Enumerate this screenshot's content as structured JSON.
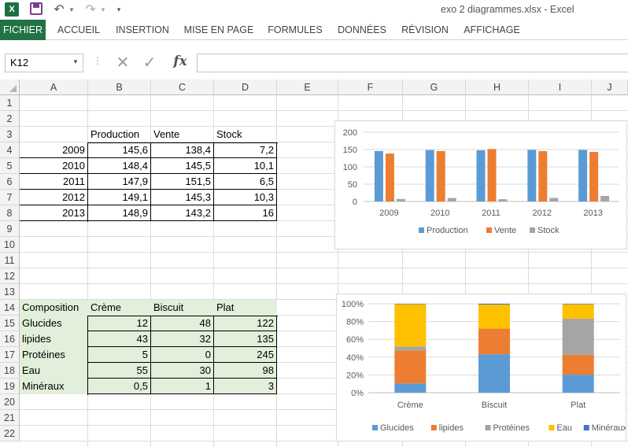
{
  "app": {
    "app_icon": "excel-icon",
    "window_title": "exo 2 diagrammes.xlsx - Excel"
  },
  "ribbon": {
    "tabs": [
      "FICHIER",
      "ACCUEIL",
      "INSERTION",
      "MISE EN PAGE",
      "FORMULES",
      "DONNÉES",
      "RÉVISION",
      "AFFICHAGE"
    ],
    "active_tab": "FICHIER",
    "accent": "#217346"
  },
  "formula_bar": {
    "name_box": "K12",
    "fx_label": "fx",
    "formula": ""
  },
  "sheet": {
    "columns": [
      "A",
      "B",
      "C",
      "D",
      "E",
      "F",
      "G",
      "H",
      "I",
      "J"
    ],
    "rows": [
      "1",
      "2",
      "3",
      "4",
      "5",
      "6",
      "7",
      "8",
      "9",
      "10",
      "11",
      "12",
      "13",
      "14",
      "15",
      "16",
      "17",
      "18",
      "19",
      "20",
      "21",
      "22"
    ],
    "table1": {
      "headers": [
        "Production",
        "Vente",
        "Stock"
      ],
      "rows": [
        {
          "year": "2009",
          "values": [
            "145,6",
            "138,4",
            "7,2"
          ]
        },
        {
          "year": "2010",
          "values": [
            "148,4",
            "145,5",
            "10,1"
          ]
        },
        {
          "year": "2011",
          "values": [
            "147,9",
            "151,5",
            "6,5"
          ]
        },
        {
          "year": "2012",
          "values": [
            "149,1",
            "145,3",
            "10,3"
          ]
        },
        {
          "year": "2013",
          "values": [
            "148,9",
            "143,2",
            "16"
          ]
        }
      ]
    },
    "table2": {
      "corner": "Composition",
      "headers": [
        "Crème",
        "Biscuit",
        "Plat"
      ],
      "rows": [
        {
          "label": "Glucides",
          "values": [
            "12",
            "48",
            "122"
          ]
        },
        {
          "label": "lipides",
          "values": [
            "43",
            "32",
            "135"
          ]
        },
        {
          "label": "Protéines",
          "values": [
            "5",
            "0",
            "245"
          ]
        },
        {
          "label": "Eau",
          "values": [
            "55",
            "30",
            "98"
          ]
        },
        {
          "label": "Minéraux",
          "values": [
            "0,5",
            "1",
            "3"
          ]
        }
      ],
      "fill": "#e2efda"
    }
  },
  "chart_data": [
    {
      "type": "bar",
      "categories": [
        "2009",
        "2010",
        "2011",
        "2012",
        "2013"
      ],
      "series": [
        {
          "name": "Production",
          "values": [
            145.6,
            148.4,
            147.9,
            149.1,
            148.9
          ],
          "color": "#5b9bd5"
        },
        {
          "name": "Vente",
          "values": [
            138.4,
            145.5,
            151.5,
            145.3,
            143.2
          ],
          "color": "#ed7d31"
        },
        {
          "name": "Stock",
          "values": [
            7.2,
            10.1,
            6.5,
            10.3,
            16
          ],
          "color": "#a5a5a5"
        }
      ],
      "ylim": [
        0,
        200
      ],
      "yticks": [
        "0",
        "50",
        "100",
        "150",
        "200"
      ],
      "grid": true,
      "legend": "bottom"
    },
    {
      "type": "bar",
      "stacked": "percent",
      "categories": [
        "Crème",
        "Biscuit",
        "Plat"
      ],
      "series": [
        {
          "name": "Glucides",
          "values": [
            12,
            48,
            122
          ],
          "color": "#5b9bd5"
        },
        {
          "name": "lipides",
          "values": [
            43,
            32,
            135
          ],
          "color": "#ed7d31"
        },
        {
          "name": "Protéines",
          "values": [
            5,
            0,
            245
          ],
          "color": "#a5a5a5"
        },
        {
          "name": "Eau",
          "values": [
            55,
            30,
            98
          ],
          "color": "#ffc000"
        },
        {
          "name": "Minéraux",
          "values": [
            0.5,
            1,
            3
          ],
          "color": "#4472c4"
        }
      ],
      "ylim": [
        0,
        100
      ],
      "yticks": [
        "0%",
        "20%",
        "40%",
        "60%",
        "80%",
        "100%"
      ],
      "grid": true,
      "legend": "bottom"
    }
  ]
}
